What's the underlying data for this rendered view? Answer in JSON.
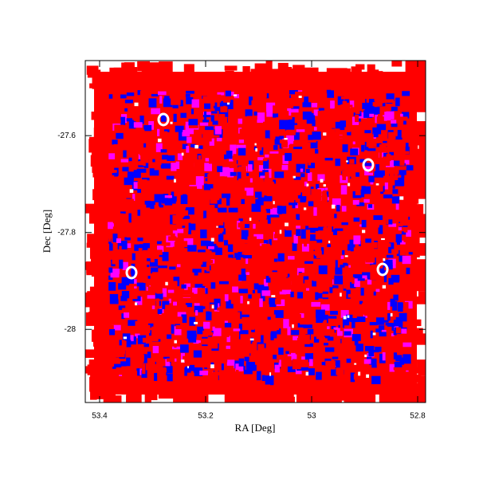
{
  "chart_data": {
    "type": "coverage",
    "xlabel": "RA [Deg]",
    "ylabel": "Dec [Deg]",
    "xlim": [
      53.427,
      52.785
    ],
    "ylim": [
      -28.151,
      -27.445
    ],
    "xticks": [
      53.4,
      53.2,
      53,
      52.8
    ],
    "yticks": [
      -27.6,
      -27.8,
      -28
    ],
    "colors": [
      "#ff0000",
      "#0000ff",
      "#ff00ff"
    ]
  }
}
